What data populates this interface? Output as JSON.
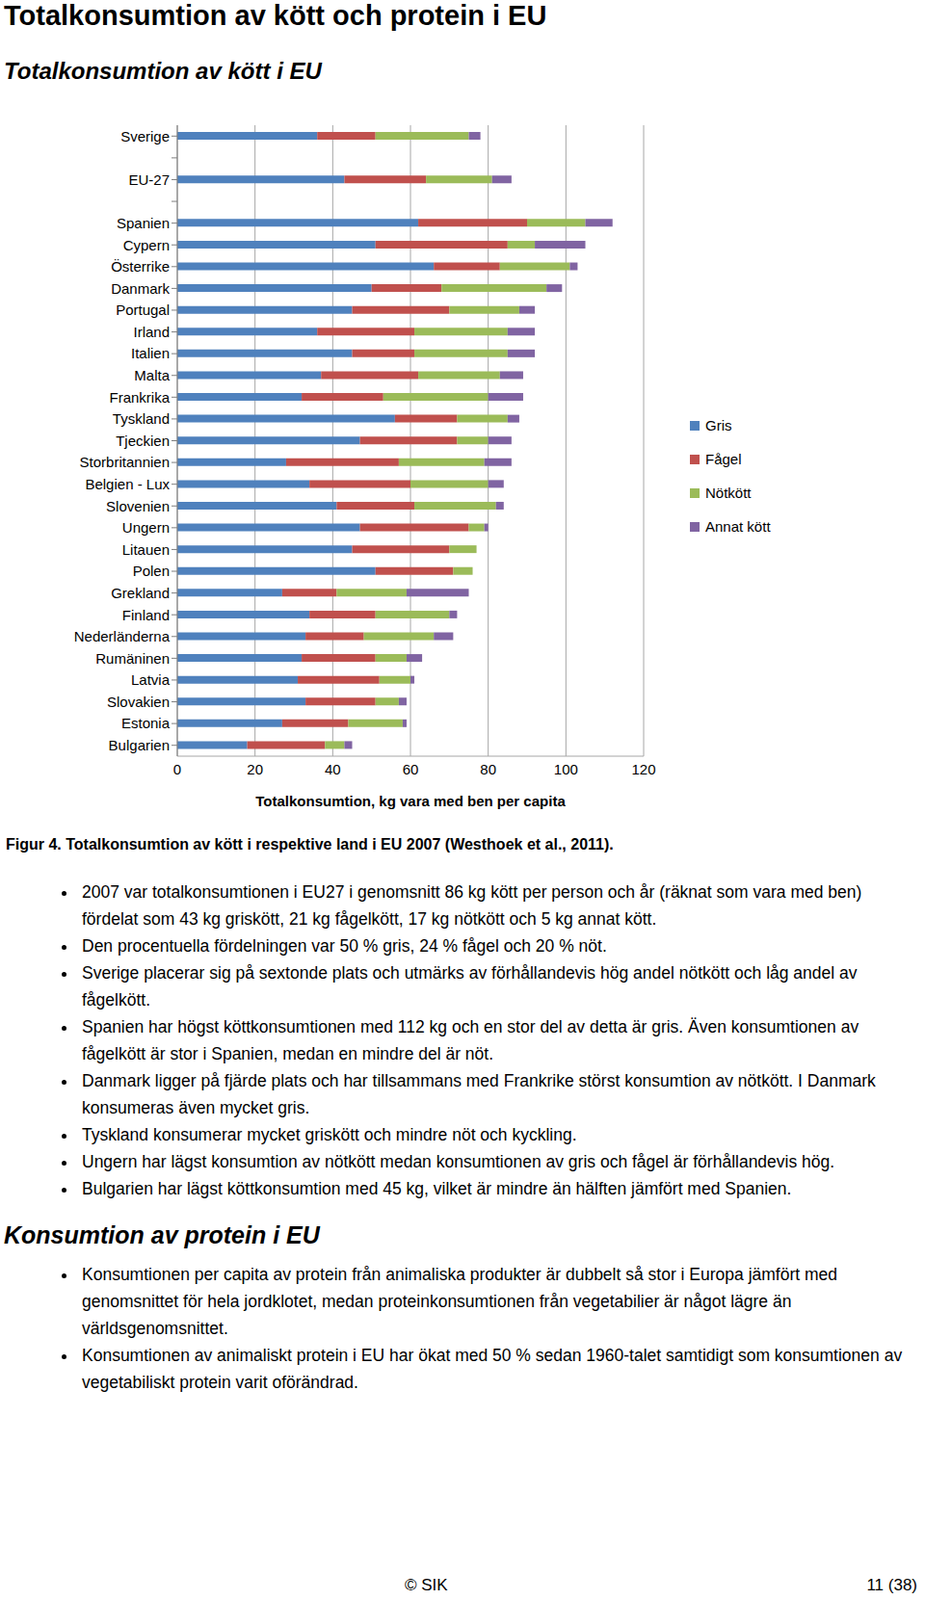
{
  "title": "Totalkonsumtion av kött och protein i EU",
  "subtitle": "Totalkonsumtion av kött i EU",
  "chart_data": {
    "type": "bar",
    "orientation": "horizontal",
    "stacked": true,
    "grid": true,
    "legend": "right",
    "xlabel": "Totalkonsumtion, kg vara med ben per capita",
    "categories": [
      "Sverige",
      null,
      "EU-27",
      null,
      "Spanien",
      "Cypern",
      "Österrike",
      "Danmark",
      "Portugal",
      "Irland",
      "Italien",
      "Malta",
      "Frankrika",
      "Tyskland",
      "Tjeckien",
      "Storbritannien",
      "Belgien - Lux",
      "Slovenien",
      "Ungern",
      "Litauen",
      "Polen",
      "Grekland",
      "Finland",
      "Nederländerna",
      "Rumäninen",
      "Latvia",
      "Slovakien",
      "Estonia",
      "Bulgarien"
    ],
    "series": [
      {
        "name": "Gris",
        "color": "#4f81bd",
        "values": [
          36,
          null,
          43,
          null,
          62,
          51,
          66,
          50,
          45,
          36,
          45,
          37,
          32,
          56,
          47,
          28,
          34,
          41,
          47,
          45,
          51,
          27,
          34,
          33,
          32,
          31,
          33,
          27,
          18
        ]
      },
      {
        "name": "Fågel",
        "color": "#c0504d",
        "values": [
          15,
          null,
          21,
          null,
          28,
          34,
          17,
          18,
          25,
          25,
          16,
          25,
          21,
          16,
          25,
          29,
          26,
          20,
          28,
          25,
          20,
          14,
          17,
          15,
          19,
          21,
          18,
          17,
          20
        ]
      },
      {
        "name": "Nötkött",
        "color": "#9bbb59",
        "values": [
          24,
          null,
          17,
          null,
          15,
          7,
          18,
          27,
          18,
          24,
          24,
          21,
          27,
          13,
          8,
          22,
          20,
          21,
          4,
          7,
          5,
          18,
          19,
          18,
          8,
          8,
          6,
          14,
          5
        ]
      },
      {
        "name": "Annat kött",
        "color": "#8064a2",
        "values": [
          3,
          null,
          5,
          null,
          7,
          13,
          2,
          4,
          4,
          7,
          7,
          6,
          9,
          3,
          6,
          7,
          4,
          2,
          1,
          0,
          0,
          16,
          2,
          5,
          4,
          1,
          2,
          1,
          2
        ]
      }
    ],
    "xlim": [
      0,
      120
    ],
    "xticks": [
      0,
      20,
      40,
      60,
      80,
      100,
      120
    ]
  },
  "caption": "Figur 4. Totalkonsumtion av kött i respektive land i EU 2007 (Westhoek et al., 2011).",
  "bullets": [
    "2007 var totalkonsumtionen i EU27 i genomsnitt 86 kg kött per person och år (räknat som vara med ben) fördelat som 43 kg griskött, 21 kg fågelkött, 17 kg nötkött och 5 kg annat kött.",
    "Den procentuella fördelningen var 50 % gris, 24 % fågel och 20 % nöt.",
    "Sverige placerar sig på sextonde plats och utmärks av förhållandevis hög andel nötkött och låg andel av fågelkött.",
    "Spanien har högst köttkonsumtionen med 112 kg och en stor del av detta är gris. Även konsumtionen av fågelkött är stor i Spanien, medan en mindre del är nöt.",
    "Danmark ligger på fjärde plats och har tillsammans med Frankrike störst konsumtion av nötkött. I Danmark konsumeras även mycket gris.",
    "Tyskland konsumerar mycket griskött och mindre nöt och kyckling.",
    "Ungern har lägst konsumtion av nötkött medan konsumtionen av gris och fågel är förhållandevis hög.",
    "Bulgarien har lägst köttkonsumtion med 45 kg, vilket är mindre än hälften jämfört med Spanien."
  ],
  "heading2": "Konsumtion av protein i EU",
  "bullets2": [
    "Konsumtionen per capita av protein från animaliska produkter är dubbelt så stor i Europa jämfört med genomsnittet för hela jordklotet, medan proteinkonsumtionen från vegeta­bilier är något lägre än världsgenomsnittet.",
    "Konsumtionen av animaliskt protein i EU har ökat med 50 % sedan 1960-talet samtidigt som konsumtionen av vegetabiliskt protein varit oförändrad."
  ],
  "footer": {
    "left": "© SIK",
    "page": "11 (38)"
  }
}
